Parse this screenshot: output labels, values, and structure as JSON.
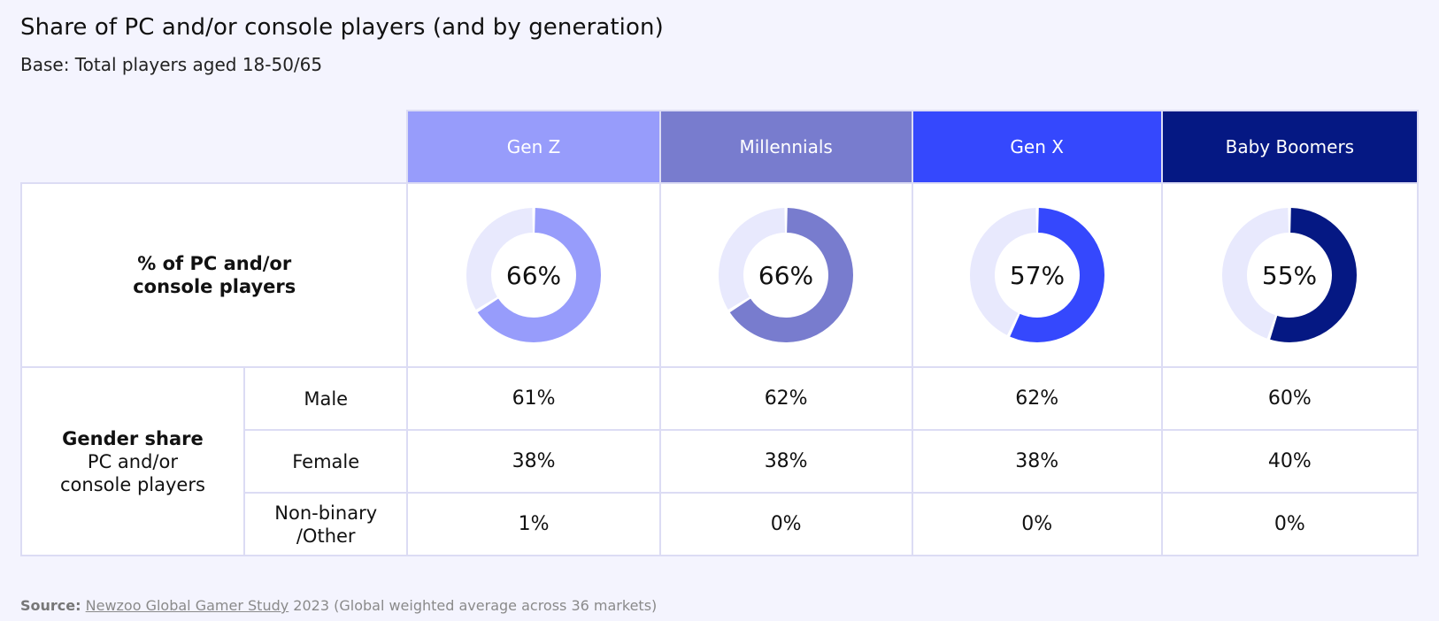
{
  "title": "Share of PC and/or console players (and by generation)",
  "subtitle": "Base: Total players aged 18-50/65",
  "metric_label_line1": "% of PC and/or",
  "metric_label_line2": "console players",
  "gender_group": {
    "bold": "Gender share",
    "line2": "PC and/or",
    "line3": "console players"
  },
  "row_labels": {
    "male": "Male",
    "female": "Female",
    "other_line1": "Non-binary",
    "other_line2": "/Other"
  },
  "generations": [
    {
      "name": "Gen Z",
      "color": "#979cfb",
      "donut_value": 66,
      "donut_label": "66%",
      "male": "61%",
      "female": "38%",
      "other": "1%"
    },
    {
      "name": "Millennials",
      "color": "#787cce",
      "donut_value": 66,
      "donut_label": "66%",
      "male": "62%",
      "female": "38%",
      "other": "0%"
    },
    {
      "name": "Gen X",
      "color": "#3548fd",
      "donut_value": 57,
      "donut_label": "57%",
      "male": "62%",
      "female": "38%",
      "other": "0%"
    },
    {
      "name": "Baby Boomers",
      "color": "#051883",
      "donut_value": 55,
      "donut_label": "55%",
      "male": "60%",
      "female": "40%",
      "other": "0%"
    }
  ],
  "donut_track_color": "#e8e9fd",
  "source": {
    "key": "Source:",
    "link": "Newzoo Global Gamer Study",
    "rest": "2023 (Global weighted average across 36 markets)"
  },
  "chart_data": {
    "type": "table",
    "title": "Share of PC and/or console players (and by generation)",
    "subtitle": "Base: Total players aged 18-50/65",
    "categories": [
      "Gen Z",
      "Millennials",
      "Gen X",
      "Baby Boomers"
    ],
    "series": [
      {
        "name": "% of PC and/or console players",
        "values": [
          66,
          66,
          57,
          55
        ]
      },
      {
        "name": "Male",
        "values": [
          61,
          62,
          62,
          60
        ]
      },
      {
        "name": "Female",
        "values": [
          38,
          38,
          38,
          40
        ]
      },
      {
        "name": "Non-binary /Other",
        "values": [
          1,
          0,
          0,
          0
        ]
      }
    ],
    "unit": "%"
  }
}
